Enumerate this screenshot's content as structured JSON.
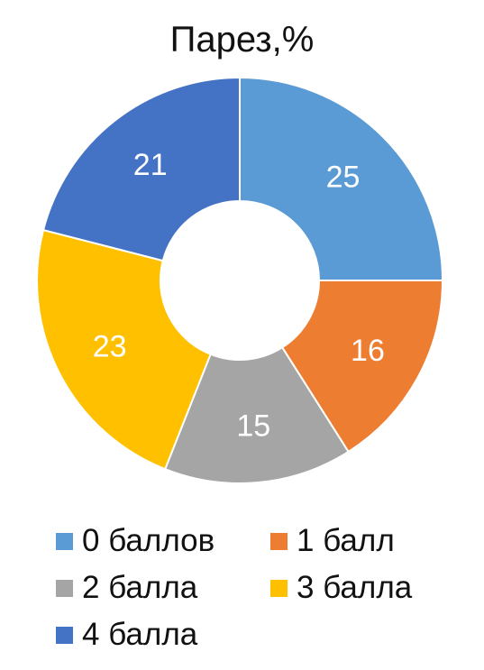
{
  "chart_data": {
    "type": "pie",
    "variant": "donut",
    "title": "Парез,%",
    "categories": [
      "0 баллов",
      "1 балл",
      "2 балла",
      "3 балла",
      "4 балла"
    ],
    "values": [
      25,
      16,
      15,
      23,
      21
    ],
    "colors": [
      "#5b9bd5",
      "#ed7d31",
      "#a5a5a5",
      "#ffc000",
      "#4472c4"
    ],
    "legend_position": "bottom"
  }
}
